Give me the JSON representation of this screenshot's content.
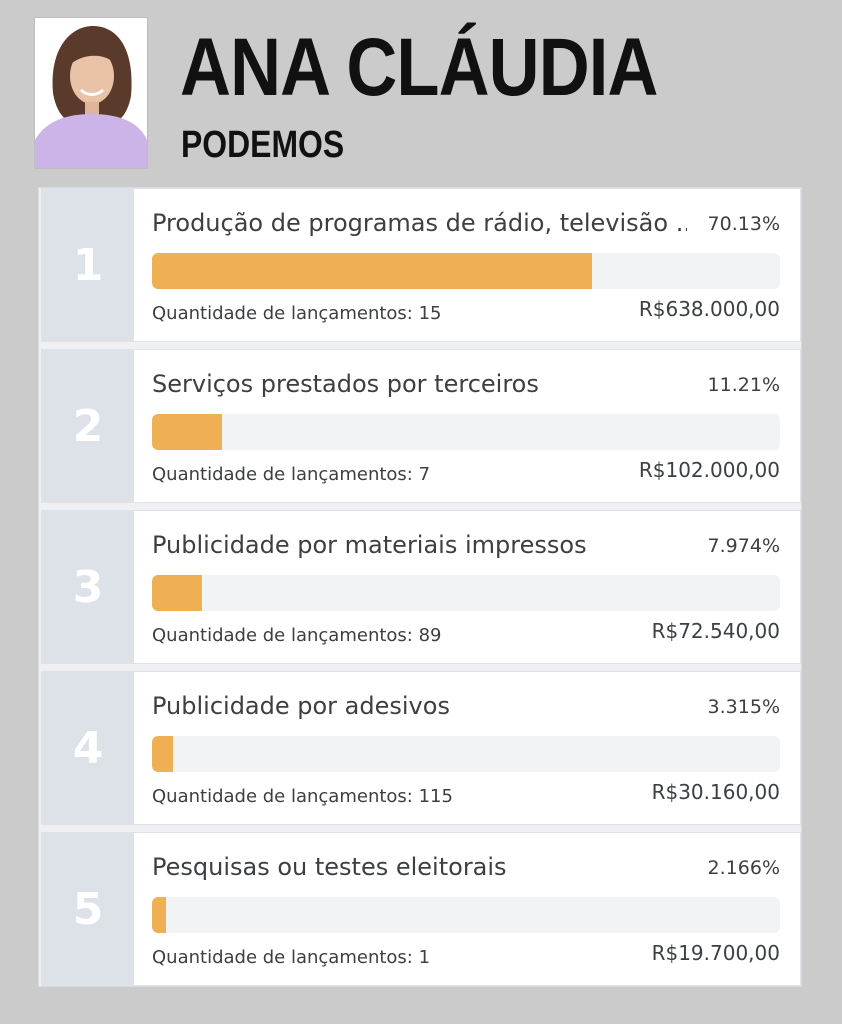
{
  "candidate": {
    "name": "ANA CLÁUDIA",
    "party": "PODEMOS"
  },
  "colors": {
    "background": "#cbcbcb",
    "bar_fill": "#efb053",
    "bar_track": "#f2f3f5",
    "rank_column": "#dde1e8"
  },
  "ranking": {
    "count_prefix": "Quantidade de lançamentos:",
    "items": [
      {
        "rank": "1",
        "label": "Produção de programas de rádio, televisão ...",
        "percent": "70.13%",
        "share": 0.7013,
        "count": "15",
        "amount": "R$638.000,00"
      },
      {
        "rank": "2",
        "label": "Serviços prestados por terceiros",
        "percent": "11.21%",
        "share": 0.1121,
        "count": "7",
        "amount": "R$102.000,00"
      },
      {
        "rank": "3",
        "label": "Publicidade por materiais impressos",
        "percent": "7.974%",
        "share": 0.07974,
        "count": "89",
        "amount": "R$72.540,00"
      },
      {
        "rank": "4",
        "label": "Publicidade por adesivos",
        "percent": "3.315%",
        "share": 0.03315,
        "count": "115",
        "amount": "R$30.160,00"
      },
      {
        "rank": "5",
        "label": "Pesquisas ou testes eleitorais",
        "percent": "2.166%",
        "share": 0.02166,
        "count": "1",
        "amount": "R$19.700,00"
      }
    ]
  }
}
